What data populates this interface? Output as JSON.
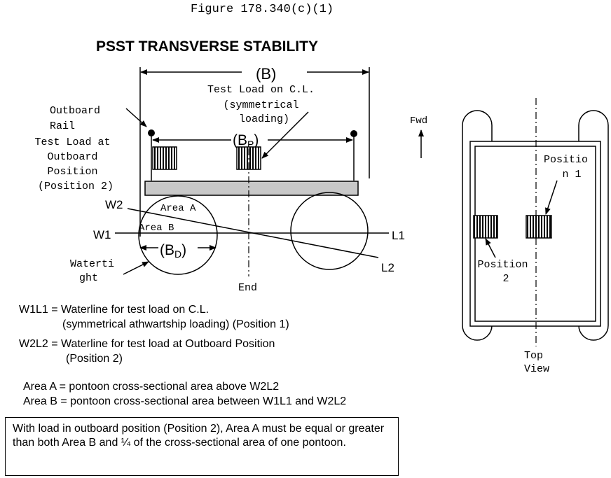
{
  "figure_label": "Figure 178.340(c)(1)",
  "title": "PSST TRANSVERSE STABILITY",
  "dims": {
    "b": "(B)",
    "bp_main": "(B",
    "bp_sub": "P",
    "bd_main": "(B",
    "bd_sub": "D",
    "close_paren": ")"
  },
  "labels": {
    "test_load_cl": [
      "Test Load on C.L.",
      "(symmetrical",
      "loading)"
    ],
    "outboard_rail": [
      "Outboard",
      "Rail"
    ],
    "test_load_outboard": [
      "Test Load at",
      "Outboard",
      "Position",
      "(Position 2)"
    ],
    "watertight": [
      "Waterti",
      "ght"
    ],
    "area_a": "Area A",
    "area_b": "Area B",
    "w1": "W1",
    "w2": "W2",
    "l1": "L1",
    "l2": "L2",
    "end": "End",
    "fwd": "Fwd",
    "position_1": [
      "Positio",
      "n 1"
    ],
    "position_2": [
      "Position",
      "2"
    ],
    "top_view": [
      "Top",
      "View"
    ]
  },
  "legend": {
    "w1l1": [
      "W1L1 = Waterline for test load on C.L.",
      "(symmetrical athwartship loading) (Position 1)"
    ],
    "w2l2": [
      "W2L2 = Waterline for test load at Outboard Position",
      "(Position 2)"
    ],
    "area_a": "Area A = pontoon cross-sectional area above W2L2",
    "area_b": "Area B = pontoon cross-sectional area between W1L1 and W2L2"
  },
  "note": "With load in outboard position (Position 2), Area A must be equal or greater than both Area B and ¼ of the cross-sectional area of one pontoon."
}
